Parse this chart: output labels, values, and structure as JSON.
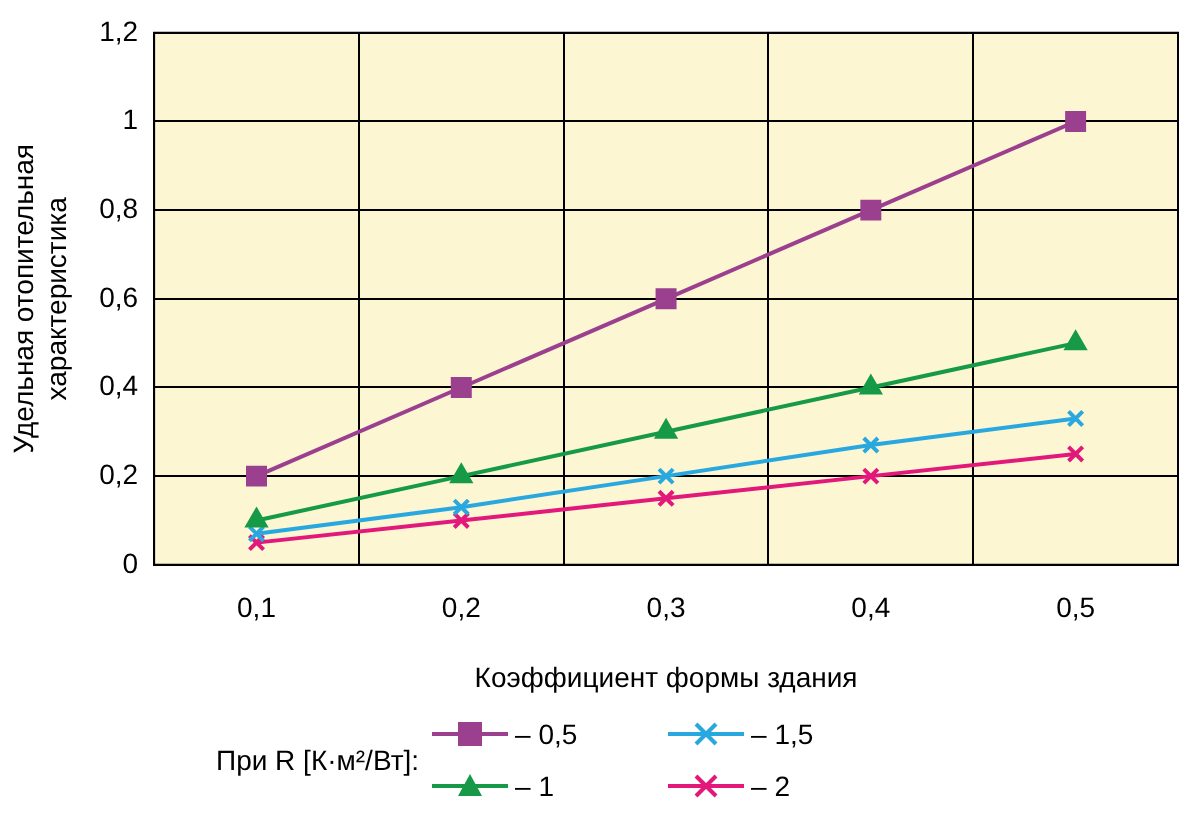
{
  "chart_data": {
    "type": "line",
    "xlabel": "Коэффициент формы здания",
    "ylabel": "Удельная отопительная характеристика",
    "legend_title": "При R [К·м²/Вт]:",
    "categories": [
      "0,1",
      "0,2",
      "0,3",
      "0,4",
      "0,5"
    ],
    "series": [
      {
        "name": "– 0,5",
        "color": "#9b3f8f",
        "marker": "square",
        "values": [
          0.2,
          0.4,
          0.6,
          0.8,
          1.0
        ]
      },
      {
        "name": "– 1",
        "color": "#169a48",
        "marker": "triangle",
        "values": [
          0.1,
          0.2,
          0.3,
          0.4,
          0.5
        ]
      },
      {
        "name": "– 1,5",
        "color": "#29a8e0",
        "marker": "cross",
        "values": [
          0.07,
          0.13,
          0.2,
          0.27,
          0.33
        ]
      },
      {
        "name": "– 2",
        "color": "#e2187b",
        "marker": "cross",
        "values": [
          0.05,
          0.1,
          0.15,
          0.2,
          0.25
        ]
      }
    ],
    "ylim": [
      0,
      1.2
    ],
    "yticks": [
      0,
      {
        "value": 0.2,
        "label": "0,2"
      },
      {
        "value": 0.4,
        "label": "0,4"
      },
      {
        "value": 0.6,
        "label": "0,6"
      },
      {
        "value": 0.8,
        "label": "0,8"
      },
      1,
      {
        "value": 1.2,
        "label": "1,2"
      }
    ],
    "grid": true,
    "legend": "bottom",
    "line_style": "solid"
  }
}
